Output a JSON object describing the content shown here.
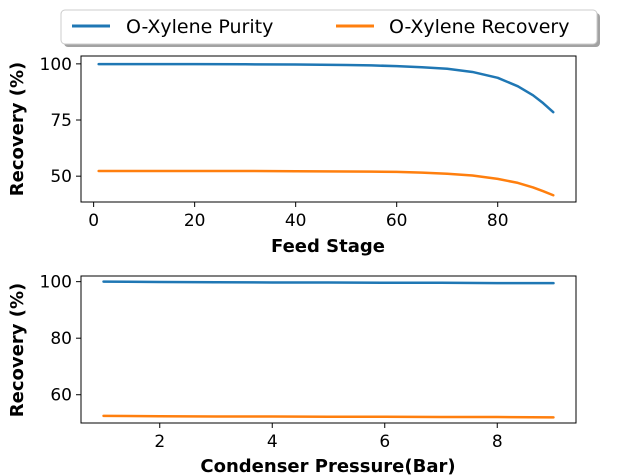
{
  "legend": {
    "items": [
      {
        "label": "O-Xylene Purity",
        "color": "#1f77b4"
      },
      {
        "label": "O-Xylene Recovery",
        "color": "#ff7f0e"
      }
    ],
    "placement": "top-center"
  },
  "chart_data": [
    {
      "type": "line",
      "title": "",
      "xlabel": "Feed Stage",
      "ylabel": "Recovery (%)",
      "xlim": [
        -2.5,
        95.5
      ],
      "ylim": [
        38.5,
        103.5
      ],
      "xticks": [
        0,
        20,
        40,
        60,
        80
      ],
      "yticks": [
        50,
        75,
        100
      ],
      "grid": false,
      "series": [
        {
          "name": "O-Xylene Purity",
          "color": "#1f77b4",
          "x": [
            1,
            10,
            20,
            30,
            40,
            50,
            55,
            60,
            65,
            70,
            75,
            80,
            84,
            87,
            89,
            91
          ],
          "y": [
            99.9,
            99.9,
            99.9,
            99.8,
            99.7,
            99.5,
            99.3,
            99.0,
            98.5,
            97.8,
            96.4,
            93.8,
            90.0,
            86.0,
            82.5,
            78.5
          ]
        },
        {
          "name": "O-Xylene Recovery",
          "color": "#ff7f0e",
          "x": [
            1,
            10,
            20,
            30,
            40,
            50,
            55,
            60,
            65,
            70,
            75,
            80,
            84,
            87,
            89,
            91
          ],
          "y": [
            52.3,
            52.3,
            52.3,
            52.3,
            52.2,
            52.1,
            52.0,
            51.9,
            51.6,
            51.1,
            50.3,
            48.8,
            47.0,
            45.0,
            43.3,
            41.5
          ]
        }
      ]
    },
    {
      "type": "line",
      "title": "",
      "xlabel": "Condenser Pressure(Bar)",
      "ylabel": "Recovery (%)",
      "xlim": [
        0.6,
        9.4
      ],
      "ylim": [
        50,
        102
      ],
      "xticks": [
        2,
        4,
        6,
        8
      ],
      "yticks": [
        60,
        80,
        100
      ],
      "grid": false,
      "series": [
        {
          "name": "O-Xylene Purity",
          "color": "#1f77b4",
          "x": [
            1,
            2,
            3,
            4,
            5,
            6,
            7,
            8,
            9
          ],
          "y": [
            100.0,
            99.9,
            99.8,
            99.7,
            99.7,
            99.6,
            99.6,
            99.5,
            99.5
          ]
        },
        {
          "name": "O-Xylene Recovery",
          "color": "#ff7f0e",
          "x": [
            1,
            2,
            3,
            4,
            5,
            6,
            7,
            8,
            9
          ],
          "y": [
            52.5,
            52.4,
            52.3,
            52.3,
            52.2,
            52.2,
            52.1,
            52.1,
            52.0
          ]
        }
      ]
    }
  ]
}
